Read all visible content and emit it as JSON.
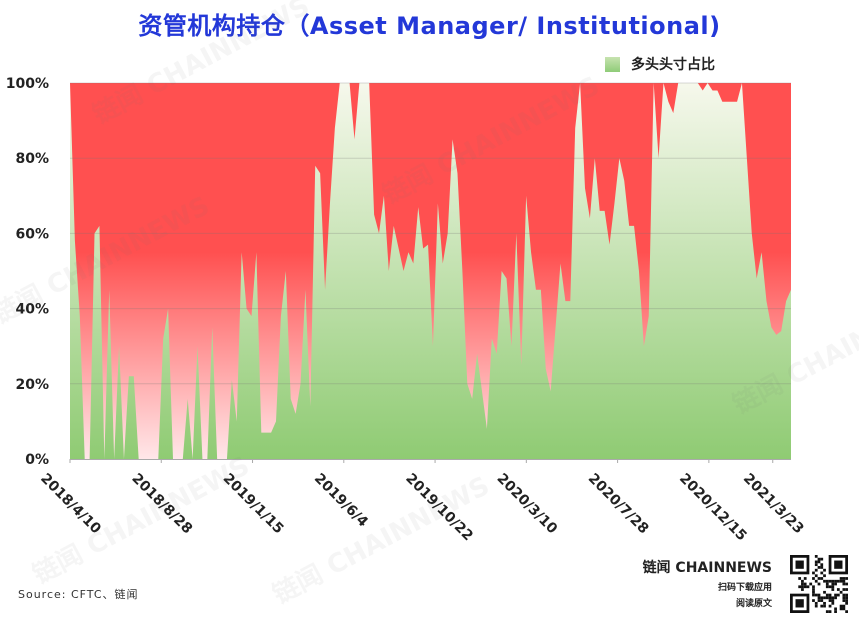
{
  "chart_data": {
    "type": "area",
    "title": "资管机构持仓（Asset Manager/ Institutional)",
    "legend": {
      "label": "多头头寸占比",
      "position": "top-right"
    },
    "ylim": [
      0,
      100
    ],
    "y_ticks": [
      "0%",
      "20%",
      "40%",
      "60%",
      "80%",
      "100%"
    ],
    "x_tick_labels": [
      "2018/4/10",
      "2018/8/28",
      "2019/1/15",
      "2019/6/4",
      "2019/10/22",
      "2020/3/10",
      "2020/7/28",
      "2020/12/15",
      "2021/3/23"
    ],
    "x_start": "2018/4/10",
    "x_end": "2021/4/20",
    "grid": true,
    "series": [
      {
        "name": "多头头寸占比",
        "values": [
          100,
          58,
          38,
          0,
          0,
          60,
          62,
          0,
          45,
          0,
          30,
          0,
          22,
          22,
          0,
          0,
          0,
          0,
          0,
          32,
          40,
          0,
          0,
          0,
          16,
          0,
          30,
          0,
          0,
          35,
          0,
          0,
          0,
          21,
          10,
          55,
          40,
          38,
          55,
          7,
          7,
          7,
          10,
          38,
          50,
          16,
          12,
          20,
          45,
          14,
          78,
          76,
          45,
          68,
          88,
          100,
          100,
          100,
          85,
          100,
          100,
          100,
          65,
          60,
          70,
          50,
          62,
          56,
          50,
          55,
          52,
          67,
          56,
          57,
          30,
          68,
          52,
          60,
          85,
          76,
          50,
          20,
          16,
          28,
          18,
          8,
          32,
          28,
          50,
          48,
          30,
          60,
          25,
          70,
          55,
          45,
          45,
          24,
          18,
          35,
          52,
          42,
          42,
          88,
          100,
          72,
          64,
          80,
          66,
          66,
          57,
          68,
          80,
          74,
          62,
          62,
          50,
          30,
          38,
          100,
          80,
          100,
          95,
          92,
          100,
          100,
          100,
          100,
          100,
          98,
          100,
          98,
          98,
          95,
          95,
          95,
          95,
          100,
          80,
          60,
          48,
          55,
          42,
          35,
          33,
          34,
          42,
          45
        ]
      }
    ],
    "colors": {
      "long_top": "#f6f8ec",
      "long_bottom": "#8fcb73",
      "short_top": "#ff5050",
      "short_bottom": "#ffe7e9"
    }
  },
  "source": "Source: CFTC、链闻",
  "brand": {
    "name": "链闻 CHAINNEWS",
    "line1": "扫码下载应用",
    "line2": "阅读原文"
  },
  "watermark": "链闻 CHAINNEWS"
}
